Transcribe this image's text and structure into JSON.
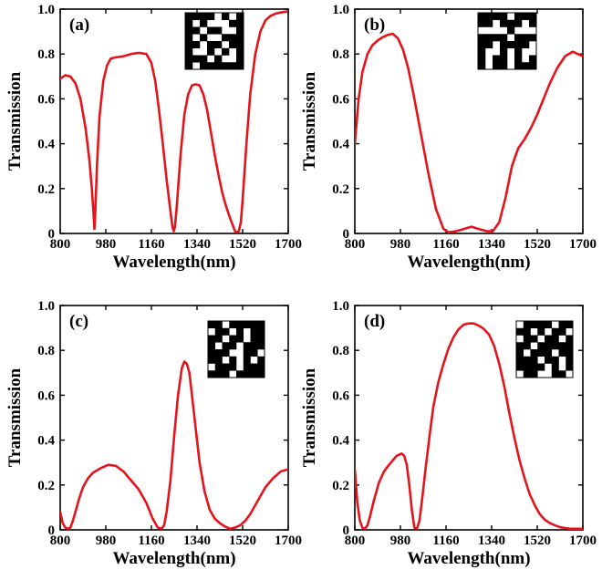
{
  "chart_data": [
    {
      "type": "line",
      "panel_label": "(a)",
      "xlabel": "Wavelength(nm)",
      "ylabel": "Transmission",
      "xlim": [
        800,
        1700
      ],
      "ylim": [
        0,
        1.0
      ],
      "xticks": [
        "800",
        "980",
        "1160",
        "1340",
        "1520",
        "1700"
      ],
      "yticks": [
        "0",
        "0.2",
        "0.4",
        "0.6",
        "0.8",
        "1.0"
      ],
      "line_color": "#e3141b",
      "series": [
        {
          "x": [
            800,
            820,
            840,
            860,
            880,
            900,
            915,
            925,
            932,
            935,
            938,
            945,
            955,
            970,
            985,
            1000,
            1020,
            1050,
            1080,
            1110,
            1140,
            1160,
            1175,
            1190,
            1205,
            1220,
            1235,
            1243,
            1248,
            1253,
            1260,
            1275,
            1290,
            1305,
            1320,
            1335,
            1350,
            1365,
            1380,
            1395,
            1410,
            1425,
            1440,
            1455,
            1470,
            1480,
            1490,
            1497,
            1505,
            1513,
            1520,
            1535,
            1550,
            1570,
            1590,
            1610,
            1630,
            1650,
            1670,
            1700
          ],
          "y": [
            0.69,
            0.705,
            0.7,
            0.67,
            0.6,
            0.47,
            0.33,
            0.2,
            0.08,
            0.02,
            0.08,
            0.3,
            0.52,
            0.68,
            0.75,
            0.78,
            0.785,
            0.79,
            0.8,
            0.805,
            0.8,
            0.76,
            0.68,
            0.55,
            0.4,
            0.24,
            0.1,
            0.03,
            0.01,
            0.03,
            0.12,
            0.35,
            0.53,
            0.62,
            0.66,
            0.665,
            0.66,
            0.62,
            0.55,
            0.45,
            0.35,
            0.26,
            0.18,
            0.12,
            0.07,
            0.04,
            0.01,
            0.005,
            0.01,
            0.05,
            0.15,
            0.4,
            0.62,
            0.8,
            0.9,
            0.95,
            0.97,
            0.98,
            0.985,
            0.99
          ]
        }
      ],
      "inset_pattern": [
        [
          1,
          1,
          1,
          1,
          0,
          1,
          0,
          1
        ],
        [
          1,
          0,
          1,
          0,
          0,
          0,
          1,
          1
        ],
        [
          1,
          1,
          0,
          1,
          1,
          0,
          0,
          1
        ],
        [
          1,
          0,
          1,
          0,
          0,
          1,
          1,
          1
        ],
        [
          1,
          1,
          0,
          1,
          1,
          0,
          1,
          1
        ],
        [
          1,
          0,
          0,
          1,
          0,
          1,
          0,
          1
        ],
        [
          1,
          1,
          1,
          0,
          1,
          0,
          0,
          1
        ],
        [
          1,
          0,
          1,
          1,
          1,
          1,
          1,
          1
        ]
      ]
    },
    {
      "type": "line",
      "panel_label": "(b)",
      "xlabel": "Wavelength(nm)",
      "ylabel": "Transmission",
      "xlim": [
        800,
        1700
      ],
      "ylim": [
        0,
        1.0
      ],
      "xticks": [
        "800",
        "980",
        "1160",
        "1340",
        "1520",
        "1700"
      ],
      "yticks": [
        "0",
        "0.2",
        "0.4",
        "0.6",
        "0.8",
        "1.0"
      ],
      "line_color": "#e3141b",
      "series": [
        {
          "x": [
            800,
            815,
            830,
            850,
            870,
            890,
            910,
            930,
            950,
            970,
            990,
            1010,
            1030,
            1060,
            1090,
            1120,
            1150,
            1170,
            1200,
            1230,
            1260,
            1290,
            1320,
            1345,
            1370,
            1395,
            1420,
            1445,
            1470,
            1495,
            1520,
            1545,
            1570,
            1600,
            1630,
            1660,
            1680,
            1700
          ],
          "y": [
            0.4,
            0.6,
            0.72,
            0.8,
            0.84,
            0.86,
            0.875,
            0.885,
            0.89,
            0.87,
            0.82,
            0.74,
            0.63,
            0.45,
            0.27,
            0.11,
            0.02,
            0.005,
            0.01,
            0.02,
            0.03,
            0.02,
            0.01,
            0.01,
            0.05,
            0.16,
            0.3,
            0.38,
            0.42,
            0.47,
            0.53,
            0.6,
            0.67,
            0.74,
            0.79,
            0.81,
            0.8,
            0.79
          ]
        }
      ],
      "inset_pattern": [
        [
          1,
          1,
          1,
          1,
          0,
          1,
          1,
          1
        ],
        [
          1,
          1,
          0,
          1,
          1,
          1,
          0,
          1
        ],
        [
          0,
          0,
          0,
          0,
          1,
          0,
          0,
          0
        ],
        [
          1,
          1,
          1,
          1,
          0,
          1,
          1,
          1
        ],
        [
          1,
          1,
          0,
          1,
          1,
          1,
          1,
          0
        ],
        [
          1,
          0,
          0,
          1,
          0,
          1,
          0,
          0
        ],
        [
          1,
          0,
          1,
          1,
          0,
          1,
          0,
          1
        ],
        [
          1,
          0,
          1,
          1,
          0,
          1,
          1,
          1
        ]
      ]
    },
    {
      "type": "line",
      "panel_label": "(c)",
      "xlabel": "Wavelength(nm)",
      "ylabel": "Transmission",
      "xlim": [
        800,
        1700
      ],
      "ylim": [
        0,
        1.0
      ],
      "xticks": [
        "800",
        "980",
        "1160",
        "1340",
        "1520",
        "1700"
      ],
      "yticks": [
        "0",
        "0.2",
        "0.4",
        "0.6",
        "0.8",
        "1.0"
      ],
      "line_color": "#e3141b",
      "series": [
        {
          "x": [
            800,
            810,
            820,
            830,
            840,
            850,
            860,
            875,
            890,
            910,
            930,
            960,
            990,
            1020,
            1050,
            1080,
            1110,
            1140,
            1165,
            1185,
            1200,
            1210,
            1220,
            1235,
            1250,
            1265,
            1280,
            1290,
            1300,
            1310,
            1320,
            1335,
            1350,
            1370,
            1390,
            1410,
            1430,
            1450,
            1470,
            1490,
            1510,
            1530,
            1550,
            1580,
            1610,
            1640,
            1670,
            1700
          ],
          "y": [
            0.08,
            0.03,
            0.01,
            0.005,
            0.01,
            0.04,
            0.08,
            0.14,
            0.19,
            0.23,
            0.255,
            0.275,
            0.29,
            0.285,
            0.26,
            0.22,
            0.18,
            0.12,
            0.05,
            0.01,
            0.005,
            0.02,
            0.08,
            0.22,
            0.42,
            0.6,
            0.72,
            0.75,
            0.74,
            0.7,
            0.6,
            0.45,
            0.3,
            0.17,
            0.09,
            0.05,
            0.03,
            0.015,
            0.005,
            0.01,
            0.02,
            0.04,
            0.07,
            0.13,
            0.19,
            0.23,
            0.26,
            0.27
          ]
        }
      ],
      "inset_pattern": [
        [
          1,
          1,
          0,
          1,
          1,
          1,
          1,
          1
        ],
        [
          0,
          1,
          1,
          0,
          1,
          0,
          1,
          1
        ],
        [
          1,
          1,
          0,
          1,
          1,
          0,
          1,
          1
        ],
        [
          1,
          0,
          1,
          1,
          0,
          1,
          1,
          1
        ],
        [
          1,
          1,
          1,
          0,
          0,
          1,
          1,
          0
        ],
        [
          1,
          1,
          0,
          1,
          0,
          1,
          0,
          1
        ],
        [
          0,
          1,
          1,
          1,
          0,
          1,
          1,
          1
        ],
        [
          1,
          1,
          1,
          0,
          1,
          1,
          1,
          1
        ]
      ]
    },
    {
      "type": "line",
      "panel_label": "(d)",
      "xlabel": "Wavelength(nm)",
      "ylabel": "Transmission",
      "xlim": [
        800,
        1700
      ],
      "ylim": [
        0,
        1.0
      ],
      "xticks": [
        "800",
        "980",
        "1160",
        "1340",
        "1520",
        "1700"
      ],
      "yticks": [
        "0",
        "0.2",
        "0.4",
        "0.6",
        "0.8",
        "1.0"
      ],
      "line_color": "#e3141b",
      "series": [
        {
          "x": [
            800,
            810,
            820,
            830,
            840,
            850,
            860,
            875,
            895,
            915,
            935,
            950,
            965,
            975,
            985,
            995,
            1005,
            1015,
            1025,
            1035,
            1045,
            1055,
            1065,
            1080,
            1095,
            1110,
            1130,
            1150,
            1170,
            1190,
            1210,
            1230,
            1250,
            1270,
            1290,
            1310,
            1330,
            1350,
            1370,
            1390,
            1410,
            1430,
            1450,
            1470,
            1490,
            1510,
            1530,
            1550,
            1570,
            1590,
            1610,
            1630,
            1650,
            1670,
            1690,
            1700
          ],
          "y": [
            0.27,
            0.12,
            0.04,
            0.01,
            0.005,
            0.02,
            0.06,
            0.13,
            0.21,
            0.26,
            0.29,
            0.31,
            0.33,
            0.335,
            0.34,
            0.33,
            0.29,
            0.2,
            0.09,
            0.01,
            0.005,
            0.04,
            0.13,
            0.28,
            0.42,
            0.55,
            0.66,
            0.74,
            0.81,
            0.86,
            0.895,
            0.915,
            0.92,
            0.92,
            0.91,
            0.895,
            0.87,
            0.82,
            0.74,
            0.64,
            0.52,
            0.41,
            0.31,
            0.23,
            0.16,
            0.11,
            0.07,
            0.045,
            0.03,
            0.02,
            0.012,
            0.008,
            0.005,
            0.005,
            0.005,
            0.005
          ]
        }
      ],
      "inset_pattern": [
        [
          0,
          1,
          1,
          1,
          1,
          0,
          1,
          1
        ],
        [
          1,
          1,
          0,
          1,
          0,
          1,
          1,
          0
        ],
        [
          0,
          1,
          1,
          0,
          1,
          1,
          0,
          1
        ],
        [
          1,
          1,
          0,
          1,
          1,
          1,
          1,
          1
        ],
        [
          1,
          0,
          1,
          1,
          1,
          0,
          1,
          1
        ],
        [
          1,
          1,
          1,
          0,
          1,
          1,
          0,
          1
        ],
        [
          1,
          1,
          1,
          1,
          0,
          1,
          0,
          1
        ],
        [
          0,
          1,
          1,
          0,
          0,
          1,
          1,
          0
        ]
      ]
    }
  ]
}
